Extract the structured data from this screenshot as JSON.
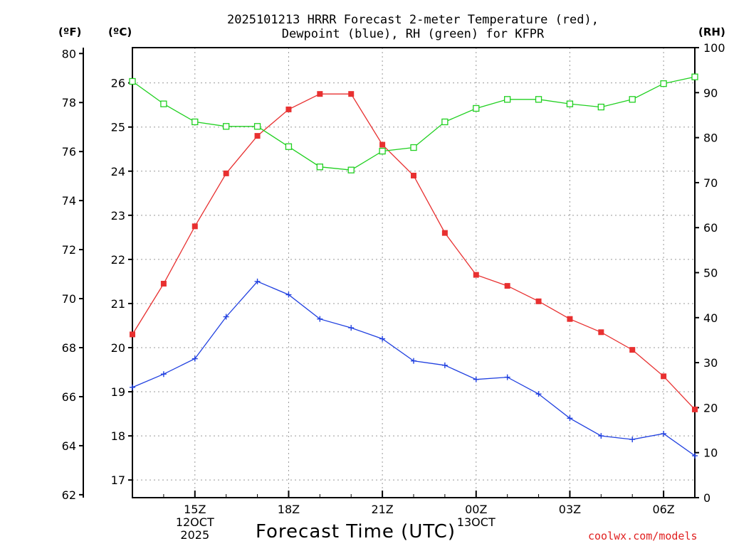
{
  "title": {
    "line1": "2025101213 HRRR Forecast 2-meter Temperature (red),",
    "line2": "Dewpoint (blue), RH (green) for KFPR"
  },
  "units": {
    "fahrenheit": "(ºF)",
    "celsius": "(ºC)",
    "rh": "(RH)"
  },
  "xtitle": "Forecast Time (UTC)",
  "credit": "coolwx.com/models",
  "colors": {
    "temperature": "#e83030",
    "dewpoint": "#2040e0",
    "rh": "#20d020",
    "grid": "#999999"
  },
  "chart_data": {
    "type": "line",
    "title": "2025101213 HRRR Forecast 2-meter Temperature (red), Dewpoint (blue), RH (green) for KFPR",
    "xlabel": "Forecast Time (UTC)",
    "x": [
      13,
      14,
      15,
      16,
      17,
      18,
      19,
      20,
      21,
      22,
      23,
      24,
      25,
      26,
      27,
      28,
      29,
      30,
      31
    ],
    "xlim": [
      13,
      31
    ],
    "xticks": [
      {
        "x": 15,
        "lines": [
          "15Z",
          "12OCT",
          "2025"
        ]
      },
      {
        "x": 18,
        "lines": [
          "18Z"
        ]
      },
      {
        "x": 21,
        "lines": [
          "21Z"
        ]
      },
      {
        "x": 24,
        "lines": [
          "00Z",
          "13OCT"
        ]
      },
      {
        "x": 27,
        "lines": [
          "03Z"
        ]
      },
      {
        "x": 30,
        "lines": [
          "06Z"
        ]
      }
    ],
    "yaxes": {
      "celsius": {
        "label": "(ºC)",
        "range": [
          16.6,
          26.8
        ],
        "ticks": [
          17,
          18,
          19,
          20,
          21,
          22,
          23,
          24,
          25,
          26
        ]
      },
      "fahrenheit": {
        "label": "(ºF)",
        "range": [
          61.88,
          80.24
        ],
        "ticks": [
          62,
          64,
          66,
          68,
          70,
          72,
          74,
          76,
          78,
          80
        ]
      },
      "rh": {
        "label": "(RH)",
        "range": [
          0,
          100
        ],
        "ticks": [
          0,
          10,
          20,
          30,
          40,
          50,
          60,
          70,
          80,
          90,
          100
        ]
      }
    },
    "series": [
      {
        "name": "Temperature",
        "axis": "celsius",
        "marker": "filled-square",
        "values": [
          20.3,
          21.45,
          22.75,
          23.95,
          24.8,
          25.4,
          25.75,
          25.75,
          24.6,
          23.9,
          22.6,
          21.65,
          21.4,
          21.05,
          20.65,
          20.35,
          19.95,
          19.35,
          18.6
        ]
      },
      {
        "name": "Dewpoint",
        "axis": "celsius",
        "marker": "plus",
        "values": [
          19.1,
          19.4,
          19.75,
          20.7,
          21.5,
          21.2,
          20.65,
          20.45,
          20.2,
          19.7,
          19.6,
          19.28,
          19.33,
          18.95,
          18.4,
          18.0,
          17.92,
          18.05,
          17.55
        ]
      },
      {
        "name": "RH",
        "axis": "rh",
        "marker": "open-square",
        "values": [
          92.5,
          87.5,
          83.5,
          82.5,
          82.5,
          78.0,
          73.5,
          72.8,
          77.0,
          77.8,
          83.5,
          86.5,
          88.5,
          88.5,
          87.5,
          86.8,
          88.5,
          92.0,
          93.5
        ]
      }
    ]
  }
}
